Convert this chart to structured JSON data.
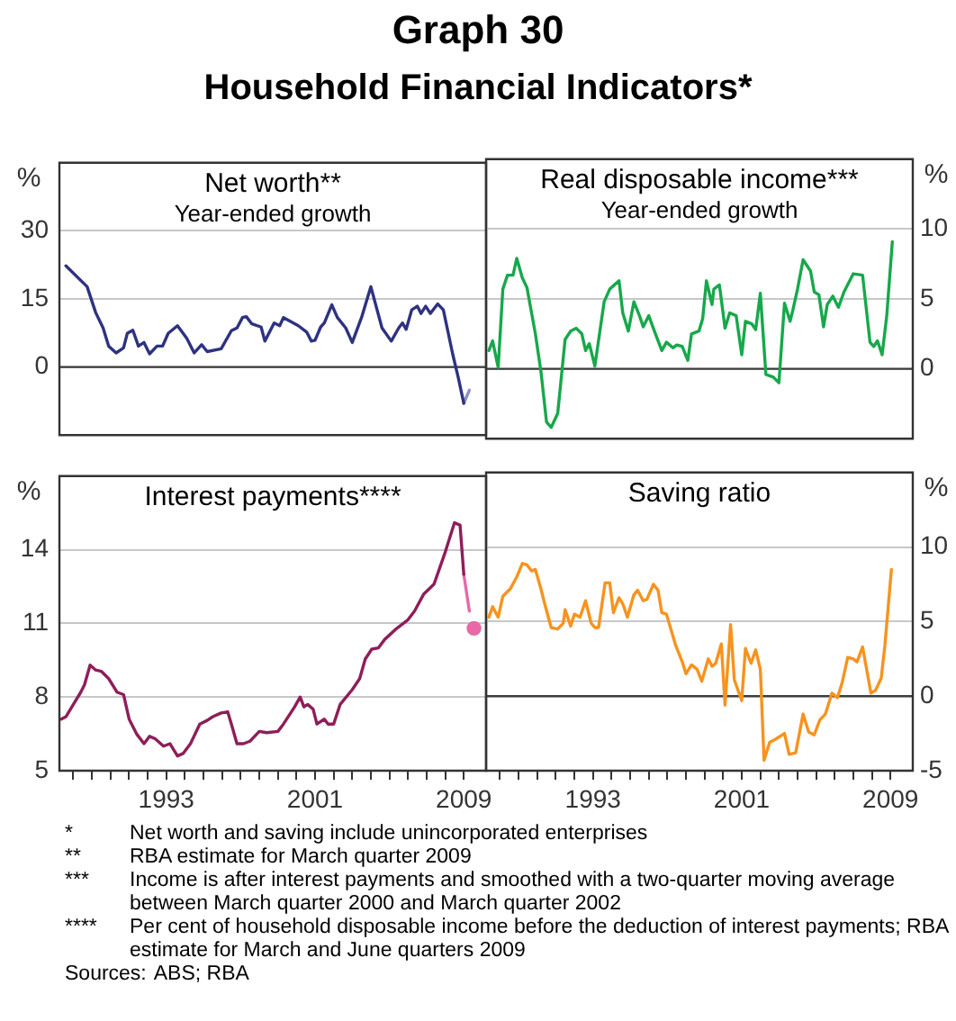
{
  "chart_data": [
    {
      "type": "other",
      "title": "Graph 30",
      "subtitle": "Household Financial Indicators*",
      "annotations": [
        "* Net worth and saving include unincorporated enterprises",
        "** RBA estimate for March quarter 2009",
        "*** Income is after interest payments and smoothed with a two-quarter moving average between March quarter 2000 and March quarter 2002",
        "**** Per cent of household disposable income before the deduction of interest payments; RBA estimate for March and June quarters 2009",
        "Sources: ABS; RBA"
      ]
    },
    {
      "type": "line",
      "title": "Net worth**",
      "subtitle": "Year-ended growth",
      "ylabel": "%",
      "xlim": [
        1987.25,
        2010.2
      ],
      "ylim": [
        -15,
        45
      ],
      "yticks": [
        0,
        15,
        30
      ],
      "grid": "y",
      "tick_labels": "y",
      "ref_lines": [
        {
          "axis": "y",
          "value": 0,
          "color": "#3c3c3c"
        }
      ],
      "series": [
        {
          "color": "#2e3281",
          "x": [
            1987.6,
            1988.74,
            1989.2,
            1989.6,
            1989.9,
            1990.3,
            1990.7,
            1990.9,
            1991.2,
            1991.5,
            1991.8,
            1992.1,
            1992.5,
            1992.8,
            1993.1,
            1993.6,
            1994.1,
            1994.5,
            1994.9,
            1995.2,
            1995.95,
            1996.5,
            1996.8,
            1997.1,
            1997.3,
            1997.6,
            1998.1,
            1998.3,
            1998.8,
            1999.1,
            1999.3,
            2000.1,
            2000.55,
            2000.8,
            2001.0,
            2001.3,
            2001.5,
            2001.9,
            2002.2,
            2002.65,
            2003.0,
            2003.5,
            2004.0,
            2004.6,
            2005.1,
            2005.5,
            2005.7,
            2005.9,
            2006.2,
            2006.5,
            2006.7,
            2006.95,
            2007.2,
            2007.6,
            2007.9,
            2008.4,
            2008.7,
            2009.0
          ],
          "values": [
            22.3,
            17.7,
            12,
            8.6,
            4.6,
            3.1,
            4.2,
            7.4,
            8.1,
            4.6,
            5.4,
            2.9,
            4.6,
            4.6,
            7.4,
            9.1,
            6.3,
            3.1,
            4.9,
            3.4,
            4,
            8,
            8.6,
            10.9,
            11.1,
            9.5,
            8.8,
            5.7,
            9.7,
            9.1,
            10.9,
            9.1,
            7.7,
            5.7,
            5.9,
            8.8,
            9.7,
            13.7,
            10.9,
            8.6,
            5.4,
            10.9,
            17.7,
            8.6,
            5.7,
            8.6,
            9.7,
            8.3,
            12.6,
            13.4,
            11.8,
            13.4,
            11.8,
            13.9,
            12.6,
            2.9,
            -2.3,
            -8
          ]
        },
        {
          "color": "#8a8fd0",
          "x": [
            2009.0,
            2009.3
          ],
          "values": [
            -8,
            -5.1
          ]
        }
      ]
    },
    {
      "type": "line",
      "title": "Real disposable income***",
      "subtitle": "Year-ended growth",
      "ylabel": "%",
      "xlim": [
        1987.25,
        2010.2
      ],
      "ylim": [
        -5,
        15
      ],
      "yticks": [
        0,
        5,
        10
      ],
      "grid": "y",
      "tick_labels": "y",
      "ref_lines": [
        {
          "axis": "y",
          "value": 0,
          "color": "#3c3c3c"
        }
      ],
      "series": [
        {
          "color": "#17a84b",
          "x": [
            1987.4,
            1987.6,
            1987.9,
            1988.15,
            1988.4,
            1988.7,
            1988.9,
            1989.2,
            1989.45,
            1989.9,
            1990.2,
            1990.5,
            1990.75,
            1991.1,
            1991.5,
            1991.8,
            1992.1,
            1992.4,
            1992.6,
            1992.8,
            1993.1,
            1993.6,
            1993.9,
            1994.4,
            1994.6,
            1994.9,
            1995.2,
            1995.5,
            1995.7,
            1996.0,
            1996.3,
            1996.7,
            1996.95,
            1997.3,
            1997.5,
            1997.8,
            1998.1,
            1998.3,
            1998.7,
            1998.9,
            1999.1,
            1999.4,
            1999.5,
            1999.8,
            2000.1,
            2000.35,
            2000.7,
            2001.0,
            2001.2,
            2001.55,
            2001.75,
            2002.0,
            2002.3,
            2002.7,
            2003.0,
            2003.3,
            2003.6,
            2003.75,
            2004.0,
            2004.3,
            2004.7,
            2004.9,
            2005.15,
            2005.4,
            2005.6,
            2005.9,
            2006.2,
            2006.5,
            2007.0,
            2007.5,
            2007.9,
            2008.1,
            2008.3,
            2008.55,
            2008.8,
            2009.1
          ],
          "values": [
            1.3,
            2.0,
            0.1,
            5.7,
            6.7,
            6.7,
            7.9,
            6.5,
            5.8,
            2.5,
            -0.2,
            -3.8,
            -4.2,
            -3.2,
            2.1,
            2.7,
            2.9,
            2.5,
            1.3,
            1.8,
            0.2,
            4.8,
            5.7,
            6.3,
            4.0,
            2.7,
            4.8,
            3.8,
            3.0,
            3.8,
            2.7,
            1.3,
            1.9,
            1.5,
            1.7,
            1.6,
            0.6,
            2.5,
            2.7,
            3.6,
            6.3,
            4.6,
            5.7,
            6.0,
            2.9,
            4.0,
            3.8,
            1.0,
            3.4,
            3.2,
            2.8,
            5.4,
            -0.4,
            -0.6,
            -1.0,
            4.7,
            3.4,
            4.2,
            5.7,
            7.8,
            7.0,
            5.5,
            5.3,
            3.0,
            4.6,
            5.2,
            4.4,
            5.5,
            6.8,
            6.7,
            1.9,
            1.6,
            2.0,
            1.0,
            3.8,
            9.1
          ]
        }
      ]
    },
    {
      "type": "line",
      "title": "Interest payments****",
      "ylabel": "%",
      "xlim": [
        1987.25,
        2010.2
      ],
      "ylim": [
        5,
        17
      ],
      "yticks": [
        5,
        8,
        11,
        14
      ],
      "xticks": [
        {
          "value": 1988,
          "label": null
        },
        {
          "value": 1989,
          "label": null
        },
        {
          "value": 1990,
          "label": null
        },
        {
          "value": 1991,
          "label": null
        },
        {
          "value": 1992,
          "label": null
        },
        1993,
        {
          "value": 1994,
          "label": null
        },
        {
          "value": 1995,
          "label": null
        },
        {
          "value": 1996,
          "label": null
        },
        {
          "value": 1997,
          "label": null
        },
        {
          "value": 1998,
          "label": null
        },
        {
          "value": 1999,
          "label": null
        },
        {
          "value": 2000,
          "label": null
        },
        2001,
        {
          "value": 2002,
          "label": null
        },
        {
          "value": 2003,
          "label": null
        },
        {
          "value": 2004,
          "label": null
        },
        {
          "value": 2005,
          "label": null
        },
        {
          "value": 2006,
          "label": null
        },
        {
          "value": 2007,
          "label": null
        },
        {
          "value": 2008,
          "label": null
        },
        2009
      ],
      "grid": "y",
      "series": [
        {
          "color": "#8e1e5a",
          "x": [
            1987.35,
            1987.6,
            1988.0,
            1988.4,
            1988.6,
            1988.9,
            1989.2,
            1989.5,
            1989.9,
            1990.35,
            1990.7,
            1991.0,
            1991.4,
            1991.8,
            1992.1,
            1992.4,
            1992.85,
            1993.2,
            1993.6,
            1993.9,
            1994.3,
            1994.8,
            1995.2,
            1995.5,
            1995.95,
            1996.3,
            1996.5,
            1996.8,
            1997.15,
            1997.5,
            1998.0,
            1998.4,
            1999.0,
            1999.3,
            1999.9,
            2000.2,
            2000.4,
            2000.6,
            2000.9,
            2001.1,
            2001.5,
            2001.7,
            2002.0,
            2002.35,
            2003.0,
            2003.4,
            2003.7,
            2004.05,
            2004.4,
            2004.75,
            2005.4,
            2006.0,
            2006.35,
            2006.85,
            2007.4,
            2008.0,
            2008.5,
            2008.8,
            2009.0
          ],
          "values": [
            7.1,
            7.2,
            7.7,
            8.2,
            8.5,
            9.3,
            9.1,
            9.05,
            8.75,
            8.2,
            8.1,
            7.1,
            6.5,
            6.1,
            6.4,
            6.3,
            6.0,
            6.1,
            5.6,
            5.7,
            6.1,
            6.9,
            7.05,
            7.2,
            7.35,
            7.4,
            6.9,
            6.1,
            6.1,
            6.2,
            6.6,
            6.55,
            6.6,
            6.9,
            7.6,
            8.0,
            7.6,
            7.7,
            7.5,
            6.9,
            7.1,
            6.9,
            6.9,
            7.7,
            8.3,
            8.75,
            9.55,
            9.95,
            10.0,
            10.35,
            10.8,
            11.15,
            11.5,
            12.2,
            12.6,
            13.9,
            15.1,
            15.0,
            13.0
          ]
        },
        {
          "color": "#e868a8",
          "x": [
            2009.0,
            2009.3
          ],
          "values": [
            13.0,
            11.5
          ]
        },
        {
          "type": "scatter",
          "marker": "circle",
          "color": "#e868a8",
          "x": [
            2009.55
          ],
          "values": [
            10.8
          ]
        }
      ]
    },
    {
      "type": "line",
      "title": "Saving ratio",
      "ylabel": "%",
      "xlim": [
        1987.25,
        2010.2
      ],
      "ylim": [
        -5,
        15
      ],
      "yticks": [
        -5,
        0,
        5,
        10
      ],
      "xticks": [
        {
          "value": 1988,
          "label": null
        },
        {
          "value": 1989,
          "label": null
        },
        {
          "value": 1990,
          "label": null
        },
        {
          "value": 1991,
          "label": null
        },
        {
          "value": 1992,
          "label": null
        },
        1993,
        {
          "value": 1994,
          "label": null
        },
        {
          "value": 1995,
          "label": null
        },
        {
          "value": 1996,
          "label": null
        },
        {
          "value": 1997,
          "label": null
        },
        {
          "value": 1998,
          "label": null
        },
        {
          "value": 1999,
          "label": null
        },
        {
          "value": 2000,
          "label": null
        },
        2001,
        {
          "value": 2002,
          "label": null
        },
        {
          "value": 2003,
          "label": null
        },
        {
          "value": 2004,
          "label": null
        },
        {
          "value": 2005,
          "label": null
        },
        {
          "value": 2006,
          "label": null
        },
        {
          "value": 2007,
          "label": null
        },
        {
          "value": 2008,
          "label": null
        },
        2009
      ],
      "grid": "y",
      "ref_lines": [
        {
          "axis": "y",
          "value": 0,
          "color": "#3c3c3c"
        }
      ],
      "series": [
        {
          "color": "#f7931e",
          "x": [
            1987.4,
            1987.6,
            1987.9,
            1988.15,
            1988.55,
            1988.9,
            1989.2,
            1989.45,
            1989.7,
            1989.9,
            1990.2,
            1990.4,
            1990.75,
            1991.1,
            1991.4,
            1991.5,
            1991.8,
            1992.0,
            1992.3,
            1992.6,
            1992.9,
            1993.1,
            1993.3,
            1993.65,
            1993.9,
            1994.1,
            1994.4,
            1994.6,
            1994.85,
            1995.2,
            1995.4,
            1995.7,
            1995.9,
            1996.25,
            1996.5,
            1996.7,
            1996.95,
            1997.45,
            1997.8,
            1998.0,
            1998.3,
            1998.6,
            1998.85,
            1999.2,
            1999.4,
            1999.6,
            1999.9,
            2000.1,
            2000.4,
            2000.6,
            2001.0,
            2001.2,
            2001.5,
            2001.75,
            2002.0,
            2002.2,
            2002.5,
            2002.8,
            2003.3,
            2003.55,
            2003.9,
            2004.3,
            2004.6,
            2004.9,
            2005.2,
            2005.5,
            2005.85,
            2006.15,
            2006.4,
            2006.7,
            2007.0,
            2007.2,
            2007.5,
            2007.95,
            2008.2,
            2008.5,
            2008.7,
            2009.05
          ],
          "values": [
            5.3,
            6.0,
            5.3,
            6.7,
            7.2,
            8.0,
            8.9,
            8.8,
            8.4,
            8.5,
            7.2,
            6.2,
            4.6,
            4.5,
            4.9,
            5.8,
            4.7,
            5.5,
            5.3,
            6.4,
            4.9,
            4.6,
            4.6,
            7.6,
            7.6,
            5.6,
            6.6,
            6.2,
            5.3,
            6.8,
            7.1,
            6.4,
            6.5,
            7.5,
            7.1,
            5.6,
            5.5,
            3.4,
            2.3,
            1.5,
            2.1,
            1.8,
            1.0,
            2.5,
            2.0,
            2.2,
            3.5,
            -0.6,
            4.8,
            1.1,
            -0.3,
            3.2,
            2.2,
            3.1,
            1.8,
            -4.3,
            -3.1,
            -2.9,
            -2.5,
            -3.9,
            -3.8,
            -1.2,
            -2.4,
            -2.6,
            -1.6,
            -1.2,
            0.2,
            -0.1,
            0.9,
            2.6,
            2.5,
            2.3,
            3.3,
            0.2,
            0.4,
            1.2,
            3.4,
            8.5
          ]
        }
      ]
    }
  ]
}
